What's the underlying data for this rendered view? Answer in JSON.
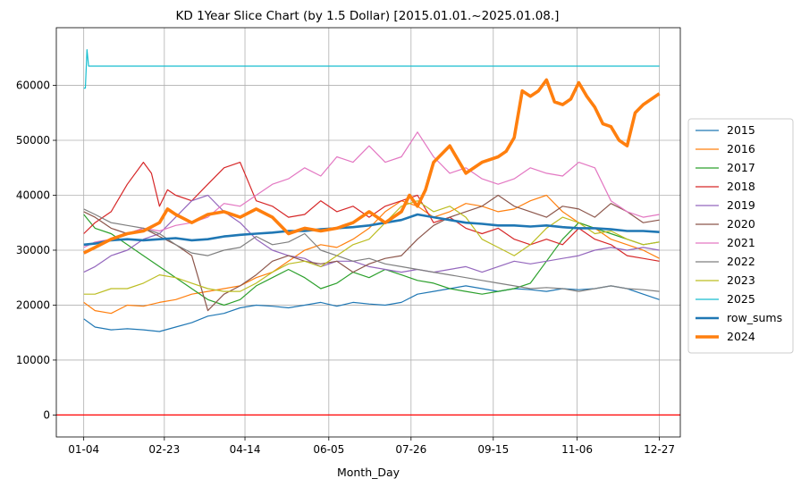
{
  "chart_data": {
    "type": "line",
    "title": "KD 1Year Slice Chart (by 1.5 Dollar) [2015.01.01.~2025.01.08.]",
    "xlabel": "Month_Day",
    "ylabel": "",
    "x_ticks": [
      "01-04",
      "02-23",
      "04-14",
      "06-05",
      "07-26",
      "09-15",
      "11-06",
      "12-27"
    ],
    "x_tick_days": [
      3,
      53,
      103,
      155,
      206,
      257,
      309,
      360
    ],
    "xlim": [
      -14,
      373
    ],
    "ylim": [
      -4000,
      70500
    ],
    "y_ticks": [
      0,
      10000,
      20000,
      30000,
      40000,
      50000,
      60000
    ],
    "grid": true,
    "legend": "center-right",
    "reference_line": {
      "y": 0,
      "color": "#ff0000"
    },
    "series": [
      {
        "name": "2015",
        "color": "#1f77b4",
        "width": 1.2,
        "x": [
          3,
          10,
          20,
          30,
          40,
          50,
          60,
          70,
          80,
          90,
          100,
          110,
          120,
          130,
          140,
          150,
          160,
          170,
          180,
          190,
          200,
          210,
          220,
          230,
          240,
          250,
          260,
          270,
          280,
          290,
          300,
          310,
          320,
          330,
          340,
          350,
          360
        ],
        "y": [
          17500,
          16000,
          15500,
          15700,
          15500,
          15200,
          16000,
          16800,
          18000,
          18500,
          19500,
          20000,
          19800,
          19500,
          20000,
          20500,
          19800,
          20500,
          20200,
          20000,
          20500,
          22000,
          22500,
          23000,
          23500,
          23000,
          22500,
          23000,
          22800,
          22500,
          23000,
          22800,
          23000,
          23500,
          23000,
          22000,
          21000
        ]
      },
      {
        "name": "2016",
        "color": "#ff7f0e",
        "width": 1.2,
        "x": [
          3,
          10,
          20,
          30,
          40,
          50,
          60,
          70,
          80,
          90,
          100,
          110,
          120,
          130,
          140,
          150,
          160,
          170,
          180,
          190,
          200,
          210,
          220,
          230,
          240,
          250,
          260,
          270,
          280,
          290,
          300,
          310,
          320,
          330,
          340,
          350,
          360
        ],
        "y": [
          20500,
          19000,
          18500,
          20000,
          19800,
          20500,
          21000,
          22000,
          22500,
          23000,
          23500,
          25000,
          26000,
          28000,
          30000,
          31000,
          30500,
          32000,
          34000,
          37000,
          39000,
          38000,
          36000,
          37000,
          38500,
          38000,
          37000,
          37500,
          39000,
          40000,
          37000,
          35000,
          34000,
          32000,
          31000,
          30000,
          28500
        ]
      },
      {
        "name": "2017",
        "color": "#2ca02c",
        "width": 1.2,
        "x": [
          3,
          10,
          20,
          30,
          40,
          50,
          60,
          70,
          80,
          90,
          100,
          110,
          120,
          130,
          140,
          150,
          160,
          170,
          180,
          190,
          200,
          210,
          220,
          230,
          240,
          250,
          260,
          270,
          280,
          290,
          300,
          310,
          320,
          330,
          340,
          350,
          360
        ],
        "y": [
          36500,
          34000,
          33000,
          31000,
          29000,
          27000,
          25000,
          23000,
          21000,
          20000,
          21000,
          23500,
          25000,
          26500,
          25000,
          23000,
          24000,
          26000,
          25000,
          26500,
          25500,
          24500,
          24000,
          23000,
          22500,
          22000,
          22500,
          23000,
          24000,
          28000,
          32000,
          35000,
          34000,
          33000,
          32000,
          31000,
          31500
        ]
      },
      {
        "name": "2018",
        "color": "#d62728",
        "width": 1.2,
        "x": [
          3,
          10,
          20,
          30,
          40,
          45,
          50,
          55,
          60,
          70,
          80,
          90,
          100,
          110,
          120,
          130,
          140,
          150,
          160,
          170,
          180,
          190,
          200,
          210,
          220,
          230,
          240,
          250,
          260,
          270,
          280,
          290,
          300,
          310,
          320,
          330,
          340,
          350,
          360
        ],
        "y": [
          33000,
          35000,
          37000,
          42000,
          46000,
          44000,
          38000,
          41000,
          40000,
          39000,
          42000,
          45000,
          46000,
          39000,
          38000,
          36000,
          36500,
          39000,
          37000,
          38000,
          36000,
          38000,
          39000,
          40000,
          35000,
          36000,
          34000,
          33000,
          34000,
          32000,
          31000,
          32000,
          31000,
          34000,
          32000,
          31000,
          29000,
          28500,
          28000
        ]
      },
      {
        "name": "2019",
        "color": "#9467bd",
        "width": 1.2,
        "x": [
          3,
          10,
          20,
          30,
          40,
          50,
          60,
          70,
          80,
          90,
          100,
          110,
          120,
          130,
          140,
          150,
          160,
          170,
          180,
          190,
          200,
          210,
          220,
          230,
          240,
          250,
          260,
          270,
          280,
          290,
          300,
          310,
          320,
          330,
          340,
          350,
          360
        ],
        "y": [
          26000,
          27000,
          29000,
          30000,
          32000,
          33000,
          36000,
          39000,
          40000,
          37000,
          35000,
          32000,
          30000,
          29000,
          28500,
          27000,
          28000,
          28000,
          27000,
          26500,
          26000,
          26500,
          26000,
          26500,
          27000,
          26000,
          27000,
          28000,
          27500,
          28000,
          28500,
          29000,
          30000,
          30500,
          30000,
          30500,
          30000
        ]
      },
      {
        "name": "2020",
        "color": "#8c564b",
        "width": 1.2,
        "x": [
          3,
          10,
          20,
          30,
          40,
          50,
          60,
          70,
          80,
          90,
          100,
          110,
          120,
          130,
          140,
          150,
          160,
          170,
          180,
          190,
          200,
          210,
          220,
          230,
          240,
          250,
          260,
          270,
          280,
          290,
          300,
          310,
          320,
          330,
          340,
          350,
          360
        ],
        "y": [
          37000,
          36000,
          34000,
          33000,
          34000,
          32500,
          31000,
          29000,
          19000,
          22000,
          23500,
          25500,
          28000,
          29000,
          28000,
          27500,
          28000,
          26000,
          27500,
          28500,
          29000,
          32000,
          34500,
          36000,
          37000,
          38000,
          40000,
          38000,
          37000,
          36000,
          38000,
          37500,
          36000,
          38500,
          37000,
          35000,
          35500
        ]
      },
      {
        "name": "2021",
        "color": "#e377c2",
        "width": 1.2,
        "x": [
          3,
          10,
          20,
          30,
          40,
          50,
          60,
          70,
          80,
          90,
          100,
          110,
          120,
          130,
          140,
          150,
          160,
          170,
          180,
          190,
          200,
          210,
          220,
          230,
          240,
          250,
          260,
          270,
          280,
          290,
          300,
          310,
          320,
          330,
          340,
          350,
          360
        ],
        "y": [
          30500,
          31500,
          32000,
          33000,
          34000,
          33500,
          34500,
          35000,
          36000,
          38500,
          38000,
          40000,
          42000,
          43000,
          45000,
          43500,
          47000,
          46000,
          49000,
          46000,
          47000,
          51500,
          47000,
          44000,
          45000,
          43000,
          42000,
          43000,
          45000,
          44000,
          43500,
          46000,
          45000,
          39000,
          37000,
          36000,
          36500
        ]
      },
      {
        "name": "2022",
        "color": "#7f7f7f",
        "width": 1.2,
        "x": [
          3,
          10,
          20,
          30,
          40,
          50,
          60,
          70,
          80,
          90,
          100,
          110,
          120,
          130,
          140,
          150,
          160,
          170,
          180,
          190,
          200,
          210,
          220,
          230,
          240,
          250,
          260,
          270,
          280,
          290,
          300,
          310,
          320,
          330,
          340,
          350,
          360
        ],
        "y": [
          37500,
          36500,
          35000,
          34500,
          34000,
          33000,
          31000,
          29500,
          29000,
          30000,
          30500,
          32500,
          31000,
          31500,
          33000,
          30000,
          29000,
          28000,
          28500,
          27500,
          27000,
          26500,
          26000,
          25500,
          25000,
          24500,
          24000,
          23500,
          23000,
          23200,
          23000,
          22500,
          23000,
          23500,
          23000,
          22800,
          22500
        ]
      },
      {
        "name": "2023",
        "color": "#bcbd22",
        "width": 1.2,
        "x": [
          3,
          10,
          20,
          30,
          40,
          50,
          60,
          70,
          80,
          90,
          100,
          110,
          120,
          130,
          140,
          150,
          160,
          170,
          180,
          190,
          200,
          210,
          220,
          230,
          240,
          250,
          260,
          270,
          280,
          290,
          300,
          310,
          320,
          330,
          340,
          350,
          360
        ],
        "y": [
          22000,
          22000,
          23000,
          23000,
          24000,
          25500,
          25000,
          24000,
          23000,
          22500,
          22500,
          24000,
          26000,
          27500,
          28000,
          27000,
          29000,
          31000,
          32000,
          35000,
          38000,
          39000,
          37000,
          38000,
          36000,
          32000,
          30500,
          29000,
          31000,
          34000,
          36000,
          35000,
          33000,
          33500,
          32000,
          31000,
          31500
        ]
      },
      {
        "name": "2025",
        "color": "#17becf",
        "width": 1.2,
        "x": [
          3,
          4,
          5,
          6,
          7,
          8,
          9,
          10,
          20,
          40,
          80,
          120,
          160,
          200,
          240,
          280,
          320,
          360
        ],
        "y": [
          59500,
          59500,
          66500,
          63500,
          63500,
          63500,
          63500,
          63500,
          63500,
          63500,
          63500,
          63500,
          63500,
          63500,
          63500,
          63500,
          63500,
          63500
        ]
      },
      {
        "name": "row_sums",
        "color": "#1f77b4",
        "width": 2.6,
        "x": [
          3,
          10,
          20,
          30,
          40,
          50,
          60,
          70,
          80,
          90,
          100,
          110,
          120,
          130,
          140,
          150,
          160,
          170,
          180,
          190,
          200,
          210,
          220,
          230,
          240,
          250,
          260,
          270,
          280,
          290,
          300,
          310,
          320,
          330,
          340,
          350,
          360
        ],
        "y": [
          31000,
          31200,
          31800,
          32000,
          31800,
          32000,
          32200,
          31800,
          32000,
          32500,
          32800,
          33000,
          33200,
          33500,
          33500,
          33800,
          34000,
          34200,
          34500,
          35000,
          35500,
          36500,
          36000,
          35500,
          35000,
          34800,
          34500,
          34500,
          34300,
          34500,
          34200,
          34000,
          34000,
          33800,
          33500,
          33500,
          33300
        ]
      },
      {
        "name": "2024",
        "color": "#ff7f0e",
        "width": 3.6,
        "x": [
          3,
          10,
          20,
          30,
          40,
          50,
          55,
          60,
          70,
          80,
          90,
          100,
          110,
          120,
          130,
          140,
          150,
          160,
          170,
          180,
          190,
          200,
          205,
          210,
          215,
          220,
          230,
          240,
          250,
          260,
          265,
          270,
          275,
          280,
          285,
          290,
          295,
          300,
          305,
          310,
          315,
          320,
          325,
          330,
          335,
          340,
          345,
          350,
          360
        ],
        "y": [
          29500,
          30500,
          32000,
          33000,
          33500,
          35000,
          37500,
          36500,
          35000,
          36500,
          37000,
          36000,
          37500,
          36000,
          33000,
          34000,
          33500,
          34000,
          35000,
          37000,
          35000,
          37000,
          40000,
          38000,
          41000,
          46000,
          49000,
          44000,
          46000,
          47000,
          48000,
          50500,
          59000,
          58000,
          59000,
          61000,
          57000,
          56500,
          57500,
          60500,
          58000,
          56000,
          53000,
          52500,
          50000,
          49000,
          55000,
          56500,
          58500
        ]
      }
    ]
  }
}
